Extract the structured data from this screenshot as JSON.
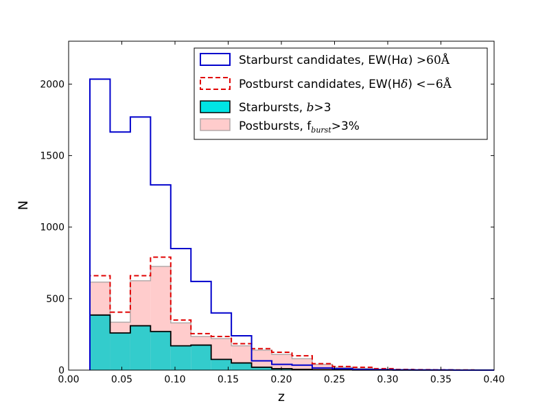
{
  "chart_data": {
    "type": "histogram",
    "xlabel": "z",
    "ylabel": "N",
    "xlim": [
      0.0,
      0.4
    ],
    "ylim": [
      0,
      2300
    ],
    "x_ticks": [
      "0.00",
      "0.05",
      "0.10",
      "0.15",
      "0.20",
      "0.25",
      "0.30",
      "0.35",
      "0.40"
    ],
    "x_tick_values": [
      0.0,
      0.05,
      0.1,
      0.15,
      0.2,
      0.25,
      0.3,
      0.35,
      0.4
    ],
    "y_ticks": [
      "0",
      "500",
      "1000",
      "1500",
      "2000"
    ],
    "y_tick_values": [
      0,
      500,
      1000,
      1500,
      2000
    ],
    "bin_edges": [
      0.02,
      0.039,
      0.058,
      0.077,
      0.096,
      0.115,
      0.134,
      0.153,
      0.172,
      0.191,
      0.21,
      0.229,
      0.248,
      0.267,
      0.286,
      0.305,
      0.324,
      0.343,
      0.362,
      0.381,
      0.4
    ],
    "grid": false,
    "legend_position": "top-right",
    "series": [
      {
        "name": "Starburst candidates, EW(Hα) >60Å",
        "style": "step",
        "color": "#0000cc",
        "values": [
          2035,
          1665,
          1770,
          1295,
          850,
          620,
          400,
          240,
          65,
          40,
          35,
          15,
          10,
          5,
          3,
          2,
          1,
          1,
          0,
          0
        ]
      },
      {
        "name": "Postburst candidates, EW(Hδ) <−6Å",
        "style": "dashed-step",
        "color": "#e00000",
        "values": [
          660,
          405,
          660,
          790,
          350,
          255,
          235,
          185,
          150,
          125,
          100,
          45,
          25,
          20,
          10,
          5,
          3,
          2,
          1,
          0
        ]
      },
      {
        "name": "Starbursts, b>3",
        "style": "filled",
        "color": "#33cccc",
        "edge": "#000000",
        "values": [
          385,
          260,
          310,
          270,
          170,
          175,
          75,
          50,
          20,
          10,
          5,
          3,
          2,
          1,
          1,
          0,
          0,
          0,
          0,
          0
        ]
      },
      {
        "name": "Postbursts, f_burst>3%",
        "style": "filled",
        "color": "#ffcccc",
        "edge": "#b3a8a8",
        "values": [
          615,
          335,
          625,
          725,
          330,
          235,
          220,
          170,
          140,
          110,
          80,
          40,
          20,
          12,
          6,
          3,
          2,
          1,
          0,
          0
        ]
      }
    ]
  },
  "legend": [
    {
      "prefix": "Starburst candidates, EW(H",
      "greek": "α",
      "suffix": ") ",
      "op": ">",
      "value": "60Å"
    },
    {
      "prefix": "Postburst candidates, EW(H",
      "greek": "δ",
      "suffix": ") ",
      "op": "<",
      "value": "−6Å"
    },
    {
      "prefix": "Starbursts, ",
      "var": "b",
      "suffix": ">3"
    },
    {
      "prefix": "Postbursts, f",
      "sub": "burst",
      "suffix": ">3%"
    }
  ]
}
